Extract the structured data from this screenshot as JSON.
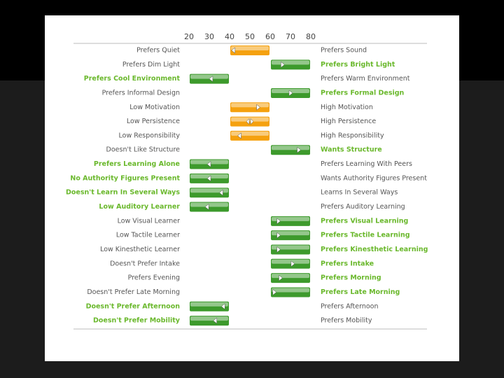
{
  "chart_data": {
    "type": "range-slider",
    "xlim": [
      20,
      80
    ],
    "xticks": [
      20,
      30,
      40,
      50,
      60,
      70,
      80
    ],
    "bands": [
      {
        "range": [
          20,
          40
        ],
        "color": "#3d9a2c",
        "highlight": "left"
      },
      {
        "range": [
          40,
          60
        ],
        "color": "#f5a10f",
        "highlight": "none"
      },
      {
        "range": [
          60,
          80
        ],
        "color": "#3d9a2c",
        "highlight": "right"
      }
    ],
    "rows": [
      {
        "left": "Prefers Quiet",
        "right": "Prefers Sound",
        "value": 42
      },
      {
        "left": "Prefers Dim Light",
        "right": "Prefers Bright Light",
        "value": 66
      },
      {
        "left": "Prefers Cool Environment",
        "right": "Prefers Warm Environment",
        "value": 31
      },
      {
        "left": "Prefers Informal Design",
        "right": "Prefers Formal Design",
        "value": 70
      },
      {
        "left": "Low Motivation",
        "right": "High Motivation",
        "value": 54
      },
      {
        "left": "Low Persistence",
        "right": "High Persistence",
        "value": 50
      },
      {
        "left": "Low Responsibility",
        "right": "High Responsibility",
        "value": 45
      },
      {
        "left": "Doesn't Like Structure",
        "right": "Wants Structure",
        "value": 74
      },
      {
        "left": "Prefers Learning Alone",
        "right": "Prefers Learning With Peers",
        "value": 30
      },
      {
        "left": "No Authority Figures Present",
        "right": "Wants Authority Figures Present",
        "value": 30
      },
      {
        "left": "Doesn't Learn In Several Ways",
        "right": "Learns In Several Ways",
        "value": 36
      },
      {
        "left": "Low Auditory Learner",
        "right": "Prefers Auditory Learning",
        "value": 29
      },
      {
        "left": "Low Visual Learner",
        "right": "Prefers Visual Learning",
        "value": 64
      },
      {
        "left": "Low Tactile Learner",
        "right": "Prefers Tactile Learning",
        "value": 64
      },
      {
        "left": "Low Kinesthetic Learner",
        "right": "Prefers Kinesthetic Learning",
        "value": 64
      },
      {
        "left": "Doesn't Prefer Intake",
        "right": "Prefers Intake",
        "value": 71
      },
      {
        "left": "Prefers Evening",
        "right": "Prefers Morning",
        "value": 65
      },
      {
        "left": "Doesn't Prefer Late Morning",
        "right": "Prefers Late Morning",
        "value": 62
      },
      {
        "left": "Doesn't Prefer Afternoon",
        "right": "Prefers Afternoon",
        "value": 37
      },
      {
        "left": "Doesn't Prefer Mobility",
        "right": "Prefers Mobility",
        "value": 33
      }
    ]
  }
}
